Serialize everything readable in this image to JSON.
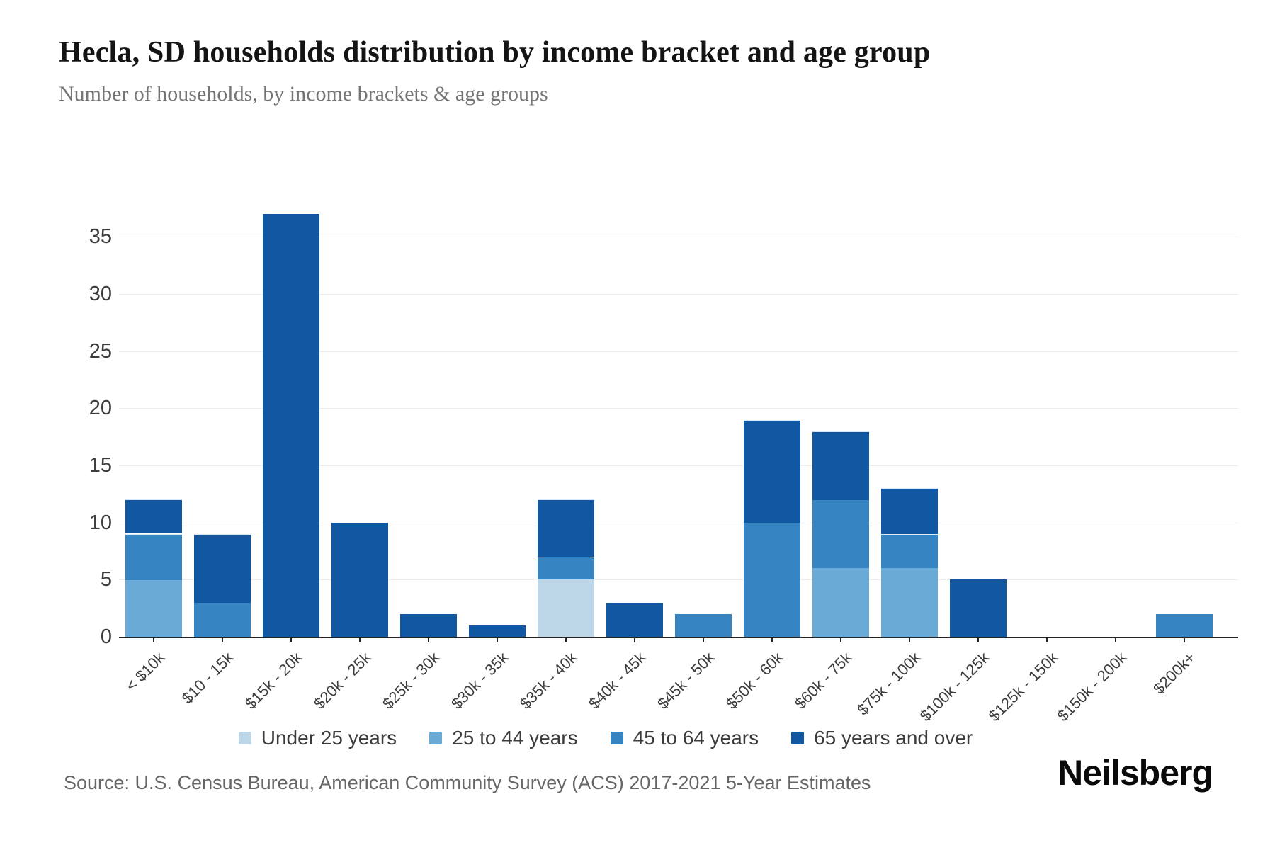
{
  "header": {
    "title": "Hecla, SD households distribution by income bracket and age group",
    "subtitle": "Number of households, by income brackets & age groups"
  },
  "chart_data": {
    "type": "bar",
    "stacked": true,
    "title": "Hecla, SD households distribution by income bracket and age group",
    "xlabel": "",
    "ylabel": "Number of households",
    "ylim": [
      0,
      37
    ],
    "yticks": [
      0,
      5,
      10,
      15,
      20,
      25,
      30,
      35
    ],
    "grid": "horizontal",
    "legend_position": "bottom",
    "categories": [
      "< $10k",
      "$10 - 15k",
      "$15k - 20k",
      "$20k - 25k",
      "$25k - 30k",
      "$30k - 35k",
      "$35k - 40k",
      "$40k - 45k",
      "$45k - 50k",
      "$50k - 60k",
      "$60k - 75k",
      "$75k - 100k",
      "$100k - 125k",
      "$125k - 150k",
      "$150k - 200k",
      "$200k+"
    ],
    "series": [
      {
        "name": "Under 25 years",
        "color": "#bdd7e9",
        "values": [
          0,
          0,
          0,
          0,
          0,
          0,
          5,
          0,
          0,
          0,
          0,
          0,
          0,
          0,
          0,
          0
        ]
      },
      {
        "name": "25 to 44 years",
        "color": "#6aaad7",
        "values": [
          5,
          0,
          0,
          0,
          0,
          0,
          0,
          0,
          0,
          0,
          6,
          6,
          0,
          0,
          0,
          0
        ]
      },
      {
        "name": "45 to 64 years",
        "color": "#3684c1",
        "values": [
          4,
          3,
          0,
          0,
          0,
          0,
          2,
          0,
          2,
          10,
          6,
          3,
          0,
          0,
          0,
          2
        ]
      },
      {
        "name": "65 years and over",
        "color": "#1257a2",
        "values": [
          3,
          6,
          37,
          10,
          2,
          1,
          5,
          3,
          0,
          9,
          6,
          4,
          5,
          0,
          0,
          0
        ]
      }
    ],
    "totals": [
      12,
      9,
      37,
      10,
      2,
      1,
      12,
      3,
      2,
      19,
      18,
      13,
      5,
      0,
      0,
      2
    ]
  },
  "footer": {
    "source": "Source: U.S. Census Bureau, American Community Survey (ACS) 2017-2021 5-Year Estimates",
    "logo": "Neilsberg"
  }
}
